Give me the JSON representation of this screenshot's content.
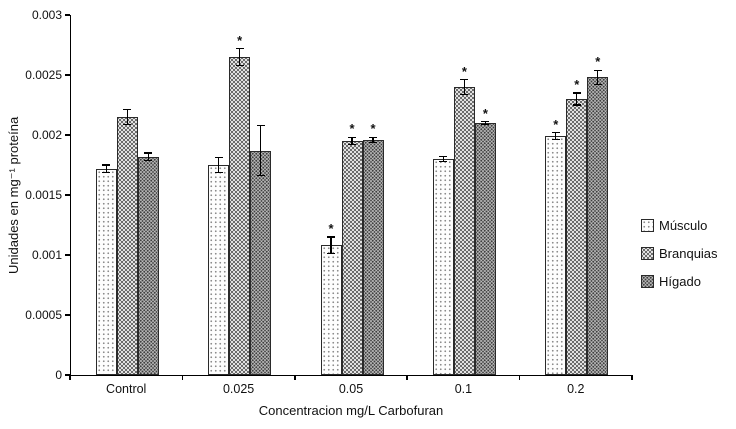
{
  "chart_data": {
    "type": "bar",
    "title": "",
    "xlabel": "Concentracion mg/L Carbofuran",
    "ylabel": "Unidades en mg⁻¹ proteína",
    "ylim": [
      0,
      0.003
    ],
    "ytick_labels": [
      "0",
      "0.0005",
      "0.001",
      "0.0015",
      "0.002",
      "0.0025",
      "0.003"
    ],
    "ytick_values": [
      0,
      0.0005,
      0.001,
      0.0015,
      0.002,
      0.0025,
      0.003
    ],
    "grid": false,
    "legend_position": "right",
    "significance_marker": "*",
    "categories": [
      "Control",
      "0.025",
      "0.05",
      "0.1",
      "0.2"
    ],
    "series": [
      {
        "name": "Músculo",
        "values": [
          0.00172,
          0.00175,
          0.00108,
          0.0018,
          0.00199
        ],
        "errors": [
          3e-05,
          6e-05,
          7e-05,
          2e-05,
          3e-05
        ],
        "significant": [
          false,
          false,
          true,
          false,
          true
        ]
      },
      {
        "name": "Branquias",
        "values": [
          0.00215,
          0.00265,
          0.00195,
          0.0024,
          0.0023
        ],
        "errors": [
          6e-05,
          7e-05,
          3e-05,
          6e-05,
          5e-05
        ],
        "significant": [
          false,
          true,
          true,
          true,
          true
        ]
      },
      {
        "name": "Hígado",
        "values": [
          0.00182,
          0.00187,
          0.00196,
          0.0021,
          0.00248
        ],
        "errors": [
          3e-05,
          0.00021,
          2e-05,
          1e-05,
          6e-05
        ],
        "significant": [
          false,
          false,
          true,
          true,
          true
        ]
      }
    ]
  }
}
